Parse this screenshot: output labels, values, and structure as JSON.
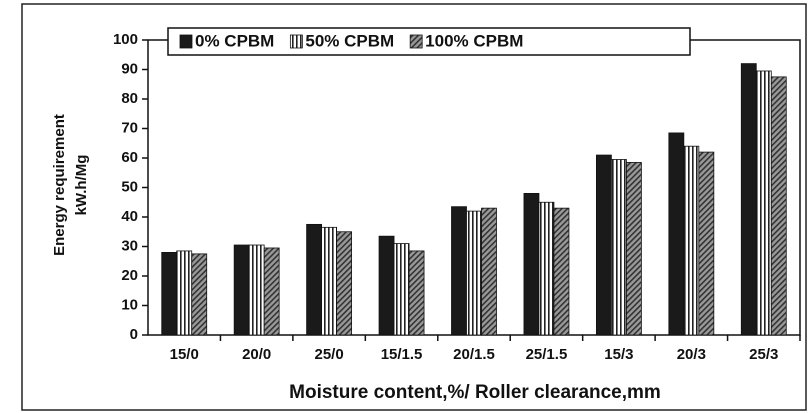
{
  "chart_data": {
    "type": "bar",
    "ylabel": [
      "Energy requirement",
      "kW.h/Mg"
    ],
    "xlabel": "Moisture content,%/ Roller clearance,mm",
    "categories": [
      "15/0",
      "20/0",
      "25/0",
      "15/1.5",
      "20/1.5",
      "25/1.5",
      "15/3",
      "20/3",
      "25/3"
    ],
    "series": [
      {
        "name": "0% CPBM",
        "color": "#1a1a1a",
        "pattern": "solid",
        "values": [
          28,
          30.5,
          37.5,
          33.5,
          43.5,
          48,
          61,
          68.5,
          92
        ]
      },
      {
        "name": "50% CPBM",
        "color": "#222222",
        "pattern": "vertical",
        "values": [
          28.5,
          30.5,
          36.5,
          31,
          42,
          45,
          59.5,
          64,
          89.5
        ]
      },
      {
        "name": "100% CPBM",
        "color": "#333333",
        "pattern": "diagonal",
        "values": [
          27.5,
          29.5,
          35,
          28.5,
          43,
          43,
          58.5,
          62,
          87.5
        ]
      }
    ],
    "ylim": [
      0,
      100
    ],
    "yticks": [
      0,
      10,
      20,
      30,
      40,
      50,
      60,
      70,
      80,
      90,
      100
    ],
    "legend": "top"
  }
}
